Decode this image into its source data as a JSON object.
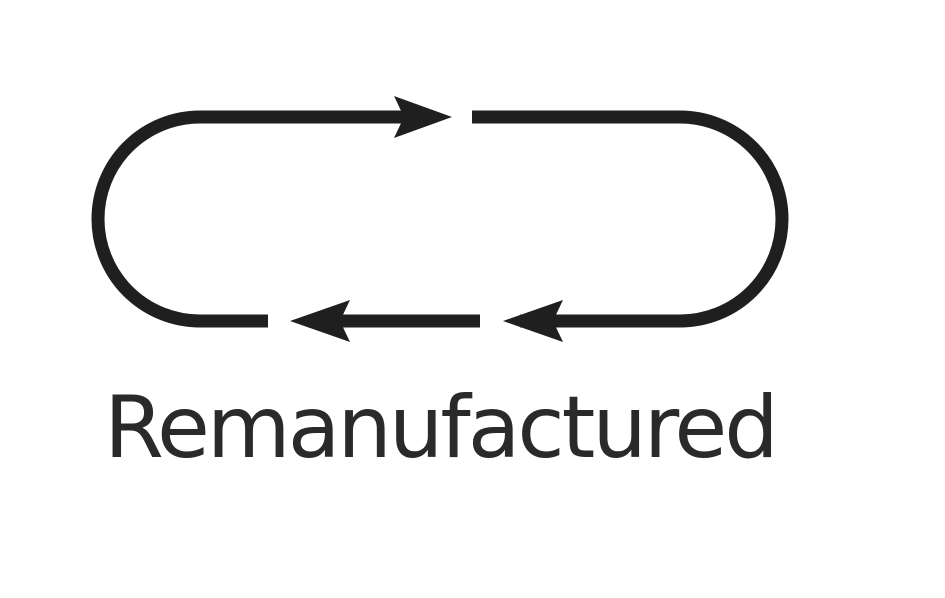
{
  "logo": {
    "label": "Remanufactured",
    "icon": "remanufacture-cycle-icon",
    "stroke_color": "#1f1f1f",
    "text_color": "#2a2a2a",
    "background": "#ffffff"
  }
}
